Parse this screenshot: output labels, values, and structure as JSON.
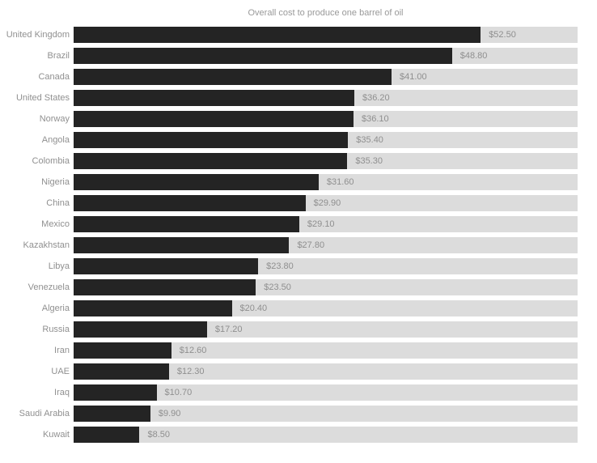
{
  "chart_data": {
    "type": "bar",
    "orientation": "horizontal",
    "title": "Overall cost to produce one barrel of oil",
    "categories": [
      "United Kingdom",
      "Brazil",
      "Canada",
      "United States",
      "Norway",
      "Angola",
      "Colombia",
      "Nigeria",
      "China",
      "Mexico",
      "Kazakhstan",
      "Libya",
      "Venezuela",
      "Algeria",
      "Russia",
      "Iran",
      "UAE",
      "Iraq",
      "Saudi Arabia",
      "Kuwait"
    ],
    "values": [
      52.5,
      48.8,
      41.0,
      36.2,
      36.1,
      35.4,
      35.3,
      31.6,
      29.9,
      29.1,
      27.8,
      23.8,
      23.5,
      20.4,
      17.2,
      12.6,
      12.3,
      10.7,
      9.9,
      8.5
    ],
    "value_labels": [
      "$52.50",
      "$48.80",
      "$41.00",
      "$36.20",
      "$36.10",
      "$35.40",
      "$35.30",
      "$31.60",
      "$29.90",
      "$29.10",
      "$27.80",
      "$23.80",
      "$23.50",
      "$20.40",
      "$17.20",
      "$12.60",
      "$12.30",
      "$10.70",
      "$9.90",
      "$8.50"
    ],
    "xlabel": "",
    "ylabel": "",
    "xlim": [
      0,
      65
    ],
    "grid": false,
    "legend": false,
    "colors": {
      "bar": "#242424",
      "track": "#dcdcdc",
      "label_text": "#909090",
      "value_text": "#8f8f8f",
      "title_text": "#999999",
      "background": "#ffffff"
    }
  }
}
